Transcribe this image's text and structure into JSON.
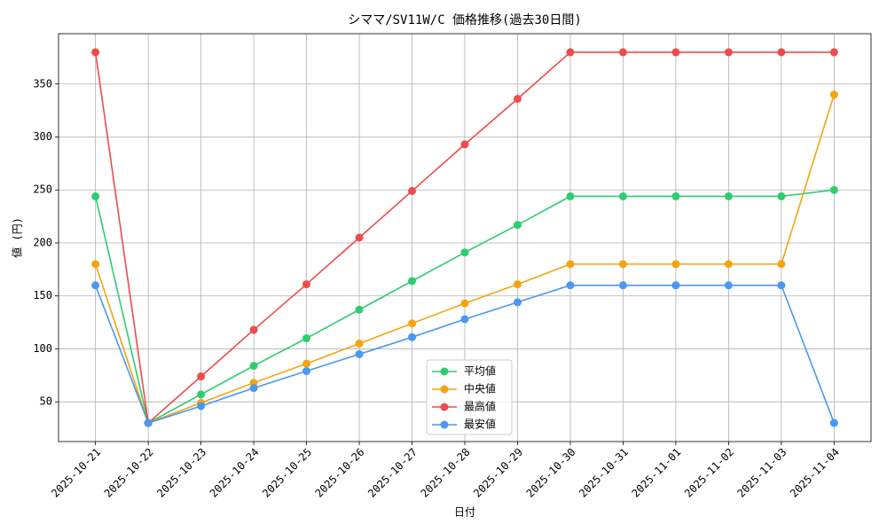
{
  "chart_data": {
    "type": "line",
    "title": "シママ/SV11W/C 価格推移(過去30日間)",
    "x_label": "日付",
    "y_label": "値 (円)",
    "categories": [
      "2025-10-21",
      "2025-10-22",
      "2025-10-23",
      "2025-10-24",
      "2025-10-25",
      "2025-10-26",
      "2025-10-27",
      "2025-10-28",
      "2025-10-29",
      "2025-10-30",
      "2025-10-31",
      "2025-11-01",
      "2025-11-02",
      "2025-11-03",
      "2025-11-04"
    ],
    "series": [
      {
        "name": "平均値",
        "color": "#2ecc71",
        "values": [
          244,
          30,
          57,
          84,
          110,
          137,
          164,
          191,
          217,
          244,
          244,
          244,
          244,
          244,
          250
        ]
      },
      {
        "name": "中央値",
        "color": "#f5a30f",
        "values": [
          180,
          30,
          49,
          68,
          86,
          105,
          124,
          143,
          161,
          180,
          180,
          180,
          180,
          180,
          340
        ]
      },
      {
        "name": "最高値",
        "color": "#ef4b4b",
        "values": [
          380,
          30,
          74,
          118,
          161,
          205,
          249,
          293,
          336,
          380,
          380,
          380,
          380,
          380,
          380
        ]
      },
      {
        "name": "最安値",
        "color": "#4a98f0",
        "values": [
          160,
          30,
          46,
          63,
          79,
          95,
          111,
          128,
          144,
          160,
          160,
          160,
          160,
          160,
          30
        ]
      }
    ],
    "ylim": [
      12.5,
      397.5
    ],
    "yticks": [
      50,
      100,
      150,
      200,
      250,
      300,
      350
    ],
    "grid": true,
    "legend": "lower center"
  }
}
